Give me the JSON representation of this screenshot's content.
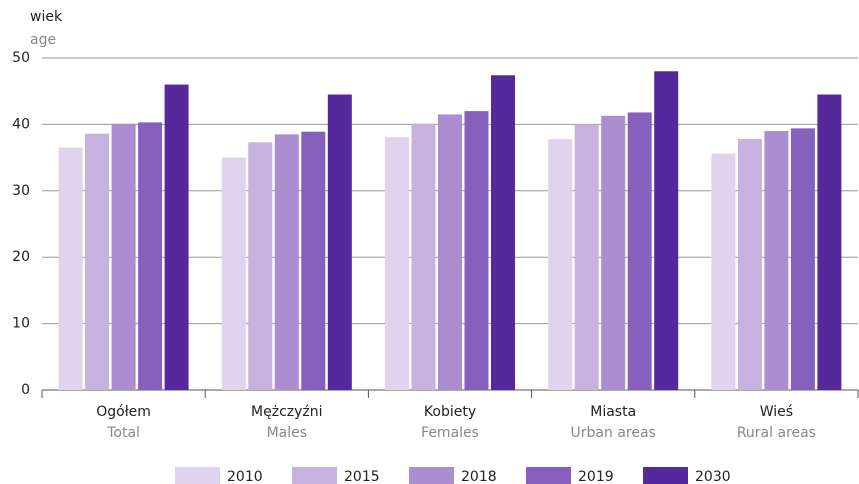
{
  "chart_data": {
    "type": "bar",
    "y_label": "wiek",
    "y_label_en": "age",
    "categories": [
      "Ogółem",
      "Mężczyźni",
      "Kobiety",
      "Miasta",
      "Wieś"
    ],
    "categories_en": [
      "Total",
      "Males",
      "Females",
      "Urban areas",
      "Rural areas"
    ],
    "series": [
      {
        "name": "2010",
        "color": "#e0d3ee",
        "values": [
          36.5,
          35.0,
          38.1,
          37.8,
          35.6
        ]
      },
      {
        "name": "2015",
        "color": "#c7b1de",
        "values": [
          38.6,
          37.3,
          40.1,
          40.0,
          37.8
        ]
      },
      {
        "name": "2018",
        "color": "#ab8ecf",
        "values": [
          40.1,
          38.5,
          41.5,
          41.3,
          39.0
        ]
      },
      {
        "name": "2019",
        "color": "#8660bc",
        "values": [
          40.3,
          38.9,
          42.0,
          41.8,
          39.4
        ]
      },
      {
        "name": "2030",
        "color": "#55289c",
        "values": [
          46.0,
          44.5,
          47.4,
          48.0,
          44.5
        ]
      }
    ],
    "ylim": [
      0,
      50
    ],
    "yticks": [
      0,
      10,
      20,
      30,
      40,
      50
    ],
    "grid": true,
    "legend": "bottom"
  }
}
